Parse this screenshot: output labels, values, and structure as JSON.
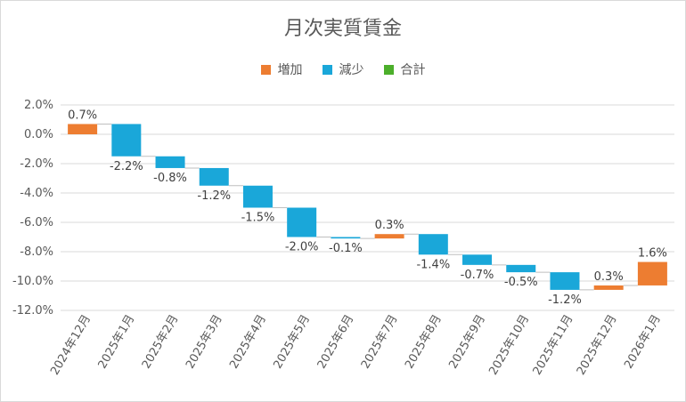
{
  "chart_data": {
    "type": "waterfall",
    "title": "月次実質賃金",
    "legend": [
      {
        "label": "増加",
        "color": "#ED7D31"
      },
      {
        "label": "減少",
        "color": "#1AA7D9"
      },
      {
        "label": "合計",
        "color": "#4CAF2B"
      }
    ],
    "categories": [
      "2024年12月",
      "2025年1月",
      "2025年2月",
      "2025年3月",
      "2025年4月",
      "2025年5月",
      "2025年6月",
      "2025年7月",
      "2025年8月",
      "2025年9月",
      "2025年10月",
      "2025年11月",
      "2025年12月",
      "2026年1月"
    ],
    "values": [
      0.7,
      -2.2,
      -0.8,
      -1.2,
      -1.5,
      -2.0,
      -0.1,
      0.3,
      -1.4,
      -0.7,
      -0.5,
      -1.2,
      0.3,
      1.6
    ],
    "labels": [
      "0.7%",
      "-2.2%",
      "-0.8%",
      "-1.2%",
      "-1.5%",
      "-2.0%",
      "-0.1%",
      "0.3%",
      "-1.4%",
      "-0.7%",
      "-0.5%",
      "-1.2%",
      "0.3%",
      "1.6%"
    ],
    "yticks": [
      "2.0%",
      "0.0%",
      "-2.0%",
      "-4.0%",
      "-6.0%",
      "-8.0%",
      "-10.0%",
      "-12.0%"
    ],
    "ylim": [
      -12,
      2
    ],
    "grid": true,
    "legend_position": "top"
  }
}
